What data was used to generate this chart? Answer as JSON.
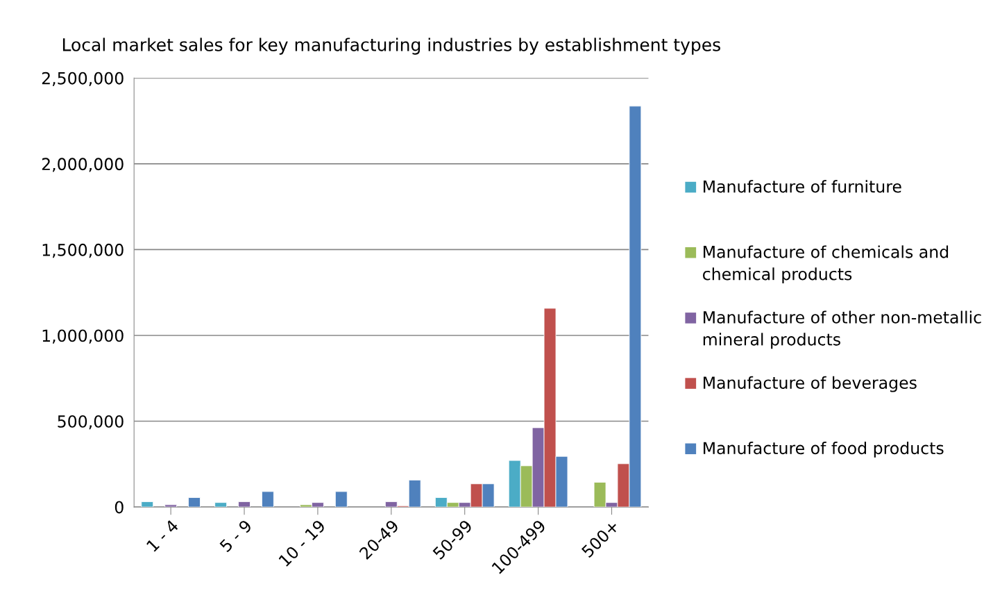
{
  "chart_data": {
    "type": "bar",
    "title": "Local market sales for key manufacturing industries by establishment types",
    "categories": [
      "1 - 4",
      "5 - 9",
      "10 - 19",
      "20-49",
      "50-99",
      "100-499",
      "500+"
    ],
    "series": [
      {
        "name": "Manufacture of furniture",
        "color": "#4bacc6",
        "values": [
          31000,
          26000,
          null,
          null,
          55000,
          271000,
          null
        ]
      },
      {
        "name": "Manufacture of chemicals and chemical products",
        "color": "#9bbb59",
        "values": [
          null,
          null,
          13000,
          null,
          26000,
          240000,
          144000
        ]
      },
      {
        "name": "Manufacture of other non-metallic mineral products",
        "color": "#8064a2",
        "values": [
          13000,
          31000,
          26000,
          31000,
          26000,
          462000,
          26000
        ]
      },
      {
        "name": "Manufacture of beverages",
        "color": "#c0504d",
        "values": [
          null,
          null,
          null,
          7000,
          135000,
          1158000,
          252000
        ]
      },
      {
        "name": "Manufacture of food products",
        "color": "#4f81bd",
        "values": [
          55000,
          90000,
          90000,
          157000,
          135000,
          295000,
          2336000
        ]
      }
    ],
    "ylim": [
      0,
      2500000
    ],
    "yticks": [
      {
        "value": 0,
        "label": "0"
      },
      {
        "value": 500000,
        "label": "500,000"
      },
      {
        "value": 1000000,
        "label": "1,000,000"
      },
      {
        "value": 1500000,
        "label": "1,500,000"
      },
      {
        "value": 2000000,
        "label": "2,000,000"
      },
      {
        "value": 2500000,
        "label": "2,500,000"
      }
    ],
    "grid": "y",
    "legend": "right"
  }
}
